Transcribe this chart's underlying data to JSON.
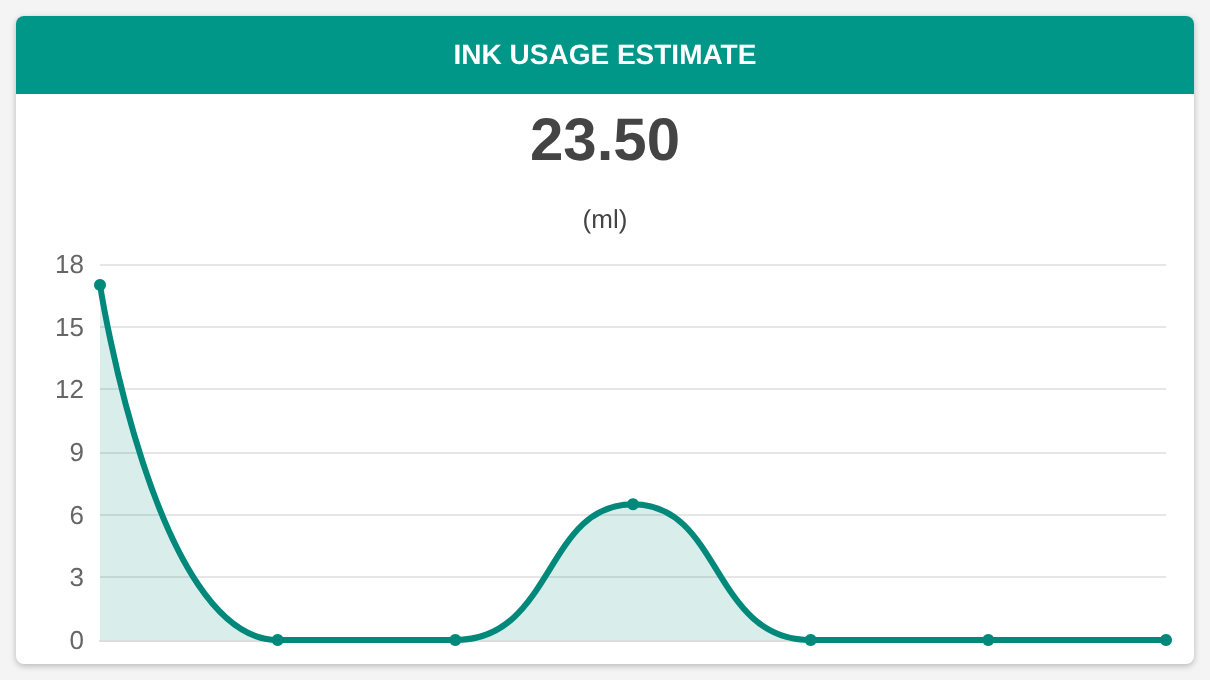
{
  "chart_data": {
    "type": "area",
    "title": "INK USAGE ESTIMATE",
    "annotations": [
      "23.50",
      "(ml)"
    ],
    "categories": [
      null,
      null,
      null,
      null,
      null,
      null,
      null
    ],
    "series": [
      {
        "color": "#00897b",
        "values": [
          17,
          0,
          0,
          6.5,
          0,
          0,
          0
        ]
      }
    ],
    "ylim": [
      0,
      18
    ],
    "yticks": [
      0,
      3,
      6,
      9,
      12,
      15,
      18
    ],
    "grid": "y",
    "tick_labels": "y",
    "marker": "circle"
  }
}
